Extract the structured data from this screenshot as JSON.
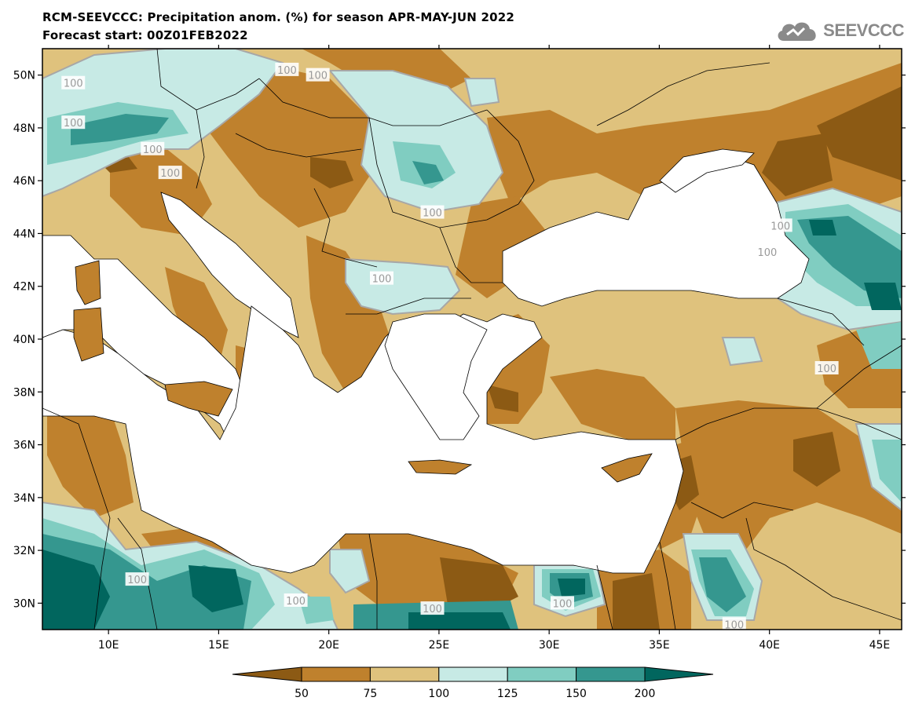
{
  "header": {
    "title": "RCM-SEEVCCC: Precipitation anom. (%) for season APR-MAY-JUN 2022",
    "subtitle": "Forecast start: 00Z01FEB2022"
  },
  "logo": {
    "text": "SEEVCCC",
    "icon": "cloud-icon"
  },
  "map": {
    "lon_range": [
      7,
      46
    ],
    "lat_range": [
      29,
      51
    ],
    "lat_ticks": [
      {
        "value": 30,
        "label": "30N"
      },
      {
        "value": 32,
        "label": "32N"
      },
      {
        "value": 34,
        "label": "34N"
      },
      {
        "value": 36,
        "label": "36N"
      },
      {
        "value": 38,
        "label": "38N"
      },
      {
        "value": 40,
        "label": "40N"
      },
      {
        "value": 42,
        "label": "42N"
      },
      {
        "value": 44,
        "label": "44N"
      },
      {
        "value": 46,
        "label": "46N"
      },
      {
        "value": 48,
        "label": "48N"
      },
      {
        "value": 50,
        "label": "50N"
      }
    ],
    "lon_ticks": [
      {
        "value": 10,
        "label": "10E"
      },
      {
        "value": 15,
        "label": "15E"
      },
      {
        "value": 20,
        "label": "20E"
      },
      {
        "value": 25,
        "label": "25E"
      },
      {
        "value": 30,
        "label": "30E"
      },
      {
        "value": 35,
        "label": "35E"
      },
      {
        "value": 40,
        "label": "40E"
      },
      {
        "value": 45,
        "label": "45E"
      }
    ],
    "contour_labels": [
      {
        "text": "100",
        "lon": 8.4,
        "lat": 48.2
      },
      {
        "text": "100",
        "lon": 12.0,
        "lat": 47.2
      },
      {
        "text": "100",
        "lon": 12.8,
        "lat": 46.3
      },
      {
        "text": "100",
        "lon": 18.1,
        "lat": 50.2
      },
      {
        "text": "100",
        "lon": 19.5,
        "lat": 50.0
      },
      {
        "text": "100",
        "lon": 24.7,
        "lat": 44.8
      },
      {
        "text": "100",
        "lon": 22.4,
        "lat": 42.3
      },
      {
        "text": "100",
        "lon": 8.4,
        "lat": 49.7
      },
      {
        "text": "100",
        "lon": 11.3,
        "lat": 30.9
      },
      {
        "text": "100",
        "lon": 18.5,
        "lat": 30.1
      },
      {
        "text": "100",
        "lon": 24.7,
        "lat": 29.8
      },
      {
        "text": "100",
        "lon": 30.6,
        "lat": 30.0
      },
      {
        "text": "100",
        "lon": 38.4,
        "lat": 29.2
      },
      {
        "text": "100",
        "lon": 40.5,
        "lat": 44.3
      },
      {
        "text": "100",
        "lon": 39.9,
        "lat": 43.3
      },
      {
        "text": "100",
        "lon": 42.6,
        "lat": 38.9
      }
    ],
    "colors": {
      "lt50": "#8c5a14",
      "50-75": "#bf812d",
      "75-100": "#dfc27d",
      "100-125": "#c7eae5",
      "125-150": "#80cdc1",
      "150-200": "#35978f",
      "gt200": "#01665e",
      "sea": "#ffffff",
      "contour100": "#a7a7a7"
    }
  },
  "colorbar": {
    "ticks": [
      "50",
      "75",
      "100",
      "125",
      "150",
      "200"
    ],
    "colors": [
      "#8c5a14",
      "#bf812d",
      "#dfc27d",
      "#c7eae5",
      "#80cdc1",
      "#35978f",
      "#01665e"
    ]
  }
}
